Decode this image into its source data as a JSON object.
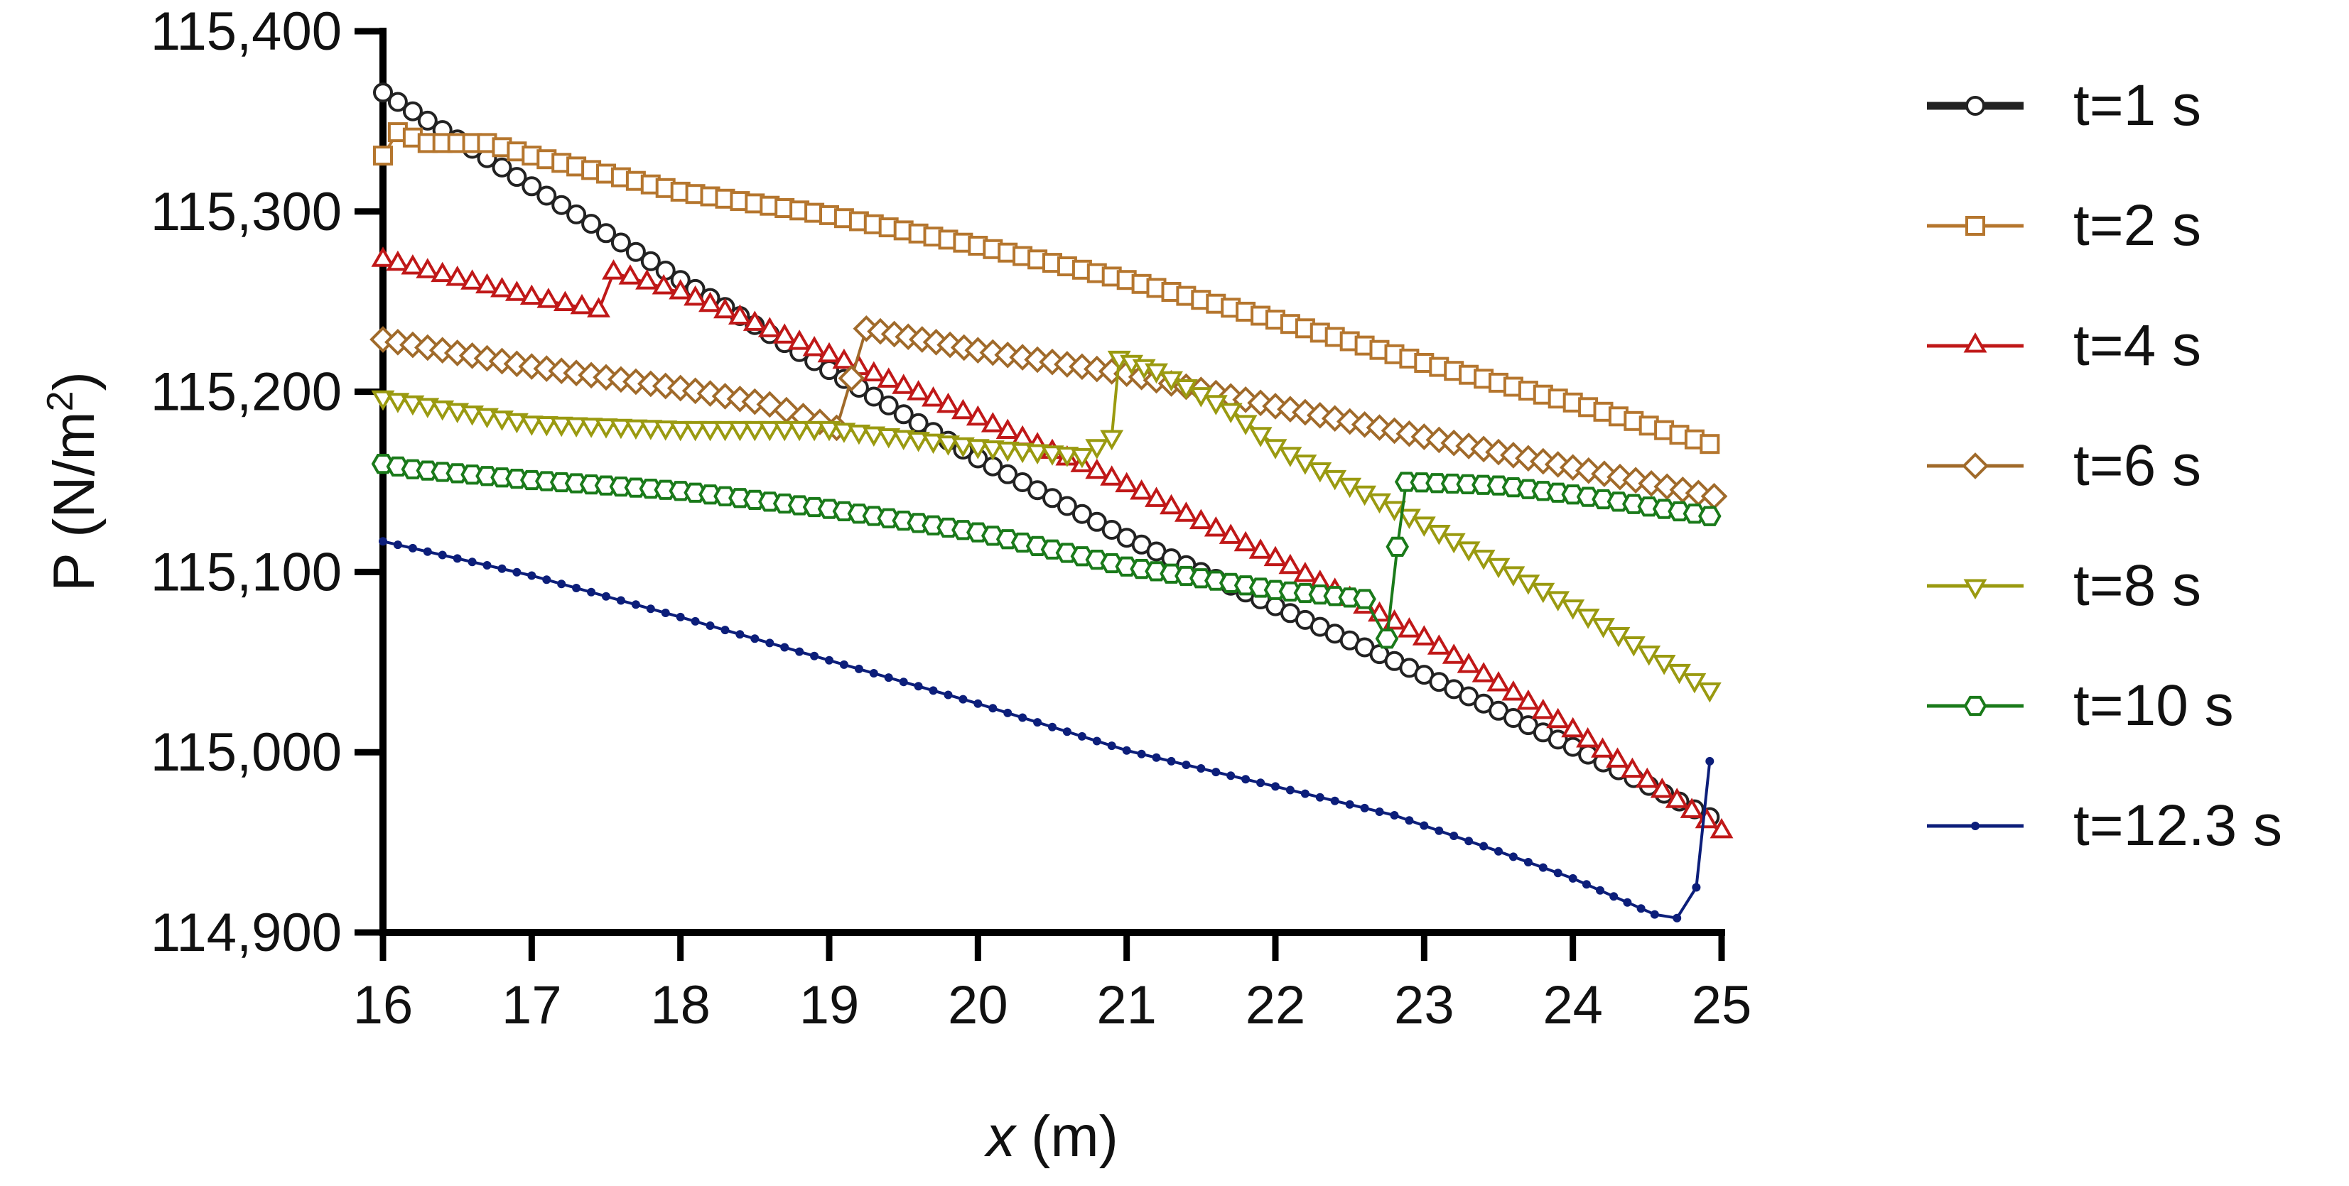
{
  "chart_data": {
    "type": "line",
    "title": "",
    "xlabel": "x",
    "xlabel_unit": "(m)",
    "ylabel": "P (N/m",
    "ylabel_sup": "2",
    "ylabel_close": ")",
    "xlim": [
      16,
      25
    ],
    "ylim": [
      114900,
      115400
    ],
    "x_ticks": [
      16,
      17,
      18,
      19,
      20,
      21,
      22,
      23,
      24,
      25
    ],
    "x_tick_labels": [
      "16",
      "17",
      "18",
      "19",
      "20",
      "21",
      "22",
      "23",
      "24",
      "25"
    ],
    "y_ticks": [
      114900,
      115000,
      115100,
      115200,
      115300,
      115400
    ],
    "y_tick_labels": [
      "114,900",
      "115,000",
      "115,100",
      "115,200",
      "115,300",
      "115,400"
    ],
    "grid": false,
    "legend_position": "right",
    "series": [
      {
        "name": "t=1 s",
        "color": "#222222",
        "marker": "circle-open",
        "points": [
          [
            16,
            115366
          ],
          [
            18,
            115262
          ],
          [
            19,
            115212
          ],
          [
            20,
            115163
          ],
          [
            21,
            115119
          ],
          [
            22,
            115081
          ],
          [
            23,
            115043
          ],
          [
            24,
            115003
          ],
          [
            24.92,
            114964
          ]
        ]
      },
      {
        "name": "t=2 s",
        "color": "#b5762e",
        "marker": "square-open",
        "points": [
          [
            16,
            115331
          ],
          [
            16.1,
            115344
          ],
          [
            16.3,
            115338
          ],
          [
            16.7,
            115338
          ],
          [
            17,
            115331
          ],
          [
            18,
            115311
          ],
          [
            19,
            115298
          ],
          [
            20,
            115281
          ],
          [
            21,
            115262
          ],
          [
            22,
            115240
          ],
          [
            23,
            115216
          ],
          [
            24,
            115194
          ],
          [
            24.92,
            115171
          ]
        ]
      },
      {
        "name": "t=4 s",
        "color": "#c01818",
        "marker": "triangle-up-open",
        "points": [
          [
            16,
            115273
          ],
          [
            17,
            115252
          ],
          [
            17.45,
            115245
          ],
          [
            17.55,
            115266
          ],
          [
            18,
            115255
          ],
          [
            19,
            115220
          ],
          [
            20,
            115185
          ],
          [
            21,
            115148
          ],
          [
            22,
            115107
          ],
          [
            23,
            115063
          ],
          [
            24,
            115012
          ],
          [
            25,
            114956
          ]
        ]
      },
      {
        "name": "t=6 s",
        "color": "#a06a2a",
        "marker": "diamond-open",
        "points": [
          [
            16,
            115229
          ],
          [
            17,
            115214
          ],
          [
            18,
            115202
          ],
          [
            18.6,
            115193
          ],
          [
            19.05,
            115180
          ],
          [
            19.25,
            115235
          ],
          [
            20,
            115223
          ],
          [
            21,
            115210
          ],
          [
            22,
            115192
          ],
          [
            23,
            115175
          ],
          [
            24,
            115158
          ],
          [
            24.95,
            115142
          ]
        ]
      },
      {
        "name": "t=8 s",
        "color": "#9a9a10",
        "marker": "triangle-down-open",
        "points": [
          [
            16,
            115197
          ],
          [
            17,
            115183
          ],
          [
            18,
            115180
          ],
          [
            19,
            115180
          ],
          [
            20,
            115170
          ],
          [
            20.7,
            115165
          ],
          [
            20.9,
            115175
          ],
          [
            20.95,
            115219
          ],
          [
            21.2,
            115212
          ],
          [
            21.7,
            115190
          ],
          [
            22,
            115170
          ],
          [
            23,
            115127
          ],
          [
            24,
            115081
          ],
          [
            24.92,
            115035
          ]
        ]
      },
      {
        "name": "t=10 s",
        "color": "#1a7a1a",
        "marker": "hexagon-open",
        "points": [
          [
            16,
            115160
          ],
          [
            16.2,
            115157
          ],
          [
            17,
            115151
          ],
          [
            18,
            115145
          ],
          [
            19,
            115135
          ],
          [
            20,
            115122
          ],
          [
            21,
            115103
          ],
          [
            22,
            115090
          ],
          [
            22.6,
            115085
          ],
          [
            22.75,
            115063
          ],
          [
            22.82,
            115114
          ],
          [
            22.88,
            115150
          ],
          [
            23.5,
            115148
          ],
          [
            24,
            115143
          ],
          [
            24.92,
            115131
          ]
        ]
      },
      {
        "name": "t=12.3 s",
        "color": "#0c1e7a",
        "marker": "dot",
        "points": [
          [
            16,
            115117
          ],
          [
            17,
            115098
          ],
          [
            18,
            115075
          ],
          [
            19,
            115051
          ],
          [
            20,
            115027
          ],
          [
            21,
            115001
          ],
          [
            22,
            114981
          ],
          [
            22.8,
            114965
          ],
          [
            23.5,
            114945
          ],
          [
            24,
            114930
          ],
          [
            24.55,
            114910
          ],
          [
            24.7,
            114908
          ],
          [
            24.83,
            114925
          ],
          [
            24.92,
            114995
          ]
        ]
      }
    ]
  }
}
